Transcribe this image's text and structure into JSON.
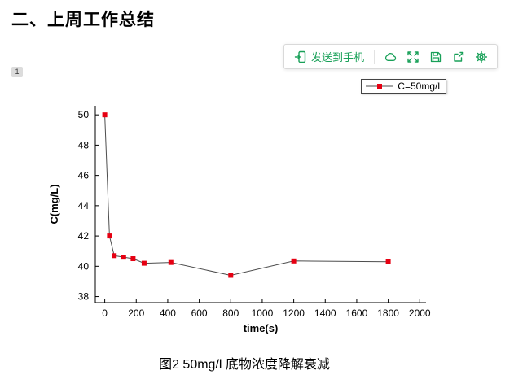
{
  "header": {
    "title": "二、上周工作总结"
  },
  "page_badge": "1",
  "toolbar": {
    "accent_color": "#18a058",
    "send_button": {
      "label": "发送到手机",
      "icon": "send-to-phone-icon"
    },
    "icons": [
      "cloud-icon",
      "fullscreen-icon",
      "save-icon",
      "export-icon",
      "settings-gear-icon"
    ]
  },
  "figure": {
    "caption": "图2 50mg/l 底物浓度降解衰减"
  },
  "chart_data": {
    "type": "line",
    "title": "",
    "xlabel": "time(s)",
    "ylabel": "C(mg/L)",
    "x": [
      0,
      30,
      60,
      120,
      180,
      250,
      420,
      800,
      1200,
      1800
    ],
    "series": [
      {
        "name": "C=50mg/l",
        "values": [
          50,
          42,
          40.7,
          40.6,
          40.5,
          40.2,
          40.25,
          39.4,
          40.35,
          40.3
        ],
        "marker": "square",
        "marker_color": "#e60012",
        "line_color": "#4d4d4d"
      }
    ],
    "xticks": [
      0,
      200,
      400,
      600,
      800,
      1000,
      1200,
      1400,
      1600,
      1800,
      2000
    ],
    "yticks": [
      38,
      40,
      42,
      44,
      46,
      48,
      50
    ],
    "xlim": [
      -60,
      2040
    ],
    "ylim": [
      37.6,
      50.6
    ],
    "grid": false,
    "legend_position": "top-right"
  }
}
